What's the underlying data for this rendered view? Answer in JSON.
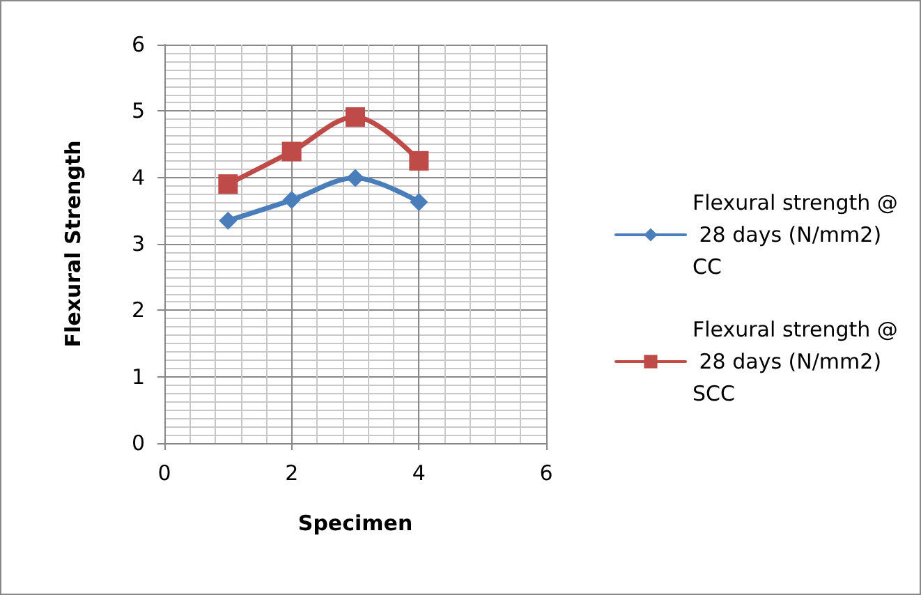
{
  "chart_data": {
    "type": "line",
    "xlabel": "Specimen",
    "ylabel": "Flexural Strength",
    "x": [
      1,
      2,
      3,
      4
    ],
    "series": [
      {
        "name": "Flexural strength @ 28 days (N/mm2) CC",
        "color": "#4a7ebb",
        "marker": "diamond",
        "values": [
          3.35,
          3.66,
          3.99,
          3.63
        ]
      },
      {
        "name": "Flexural strength @ 28 days (N/mm2) SCC",
        "color": "#be4b48",
        "marker": "square",
        "values": [
          3.9,
          4.39,
          4.91,
          4.25
        ]
      }
    ],
    "xlim": [
      0,
      6
    ],
    "xticks": [
      0,
      2,
      4,
      6
    ],
    "ylim": [
      0,
      6
    ],
    "yticks": [
      0,
      1,
      2,
      3,
      4,
      5,
      6
    ],
    "grid": true,
    "legend": "right",
    "line_style": "solid"
  }
}
